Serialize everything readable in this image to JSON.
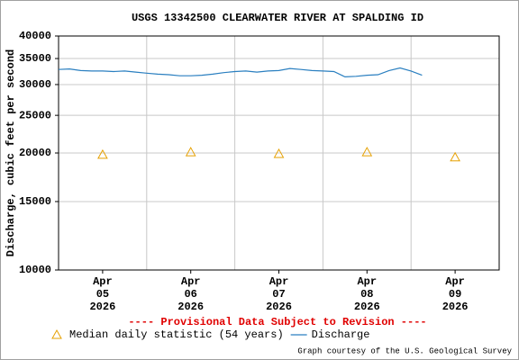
{
  "chart_data": {
    "type": "line",
    "title": "USGS 13342500 CLEARWATER RIVER AT SPALDING ID",
    "ylabel": "Discharge, cubic feet per second",
    "log_y": true,
    "grid": true,
    "ylim": [
      10000,
      40000
    ],
    "yticks": [
      10000,
      15000,
      20000,
      25000,
      30000,
      35000,
      40000
    ],
    "xlim": [
      "2026-04-05T00:00",
      "2026-04-10T00:00"
    ],
    "xticks": [
      "2026-04-06T00:00",
      "2026-04-07T00:00",
      "2026-04-08T00:00",
      "2026-04-09T00:00"
    ],
    "xtick_labels": [
      {
        "value": "2026-04-05T12:00",
        "label": [
          "Apr",
          "05",
          "2026"
        ]
      },
      {
        "value": "2026-04-06T12:00",
        "label": [
          "Apr",
          "06",
          "2026"
        ]
      },
      {
        "value": "2026-04-07T12:00",
        "label": [
          "Apr",
          "07",
          "2026"
        ]
      },
      {
        "value": "2026-04-08T12:00",
        "label": [
          "Apr",
          "08",
          "2026"
        ]
      },
      {
        "value": "2026-04-09T12:00",
        "label": [
          "Apr",
          "09",
          "2026"
        ]
      }
    ],
    "annotation": "---- Provisional Data Subject to Revision ----",
    "annotation_color": "#e00000",
    "credit": "Graph courtesy of the U.S. Geological Survey",
    "series": [
      {
        "name": "Median daily statistic (54 years)",
        "type": "scatter",
        "marker": "triangle",
        "color": "#e6a000",
        "x": [
          "2026-04-05T12:00",
          "2026-04-06T12:00",
          "2026-04-07T12:00",
          "2026-04-08T12:00",
          "2026-04-09T12:00"
        ],
        "values": [
          19800,
          20100,
          19900,
          20100,
          19500
        ]
      },
      {
        "name": "Discharge",
        "type": "line",
        "color": "#2a7fc0",
        "x": [
          "2026-04-05T00:00",
          "2026-04-05T03:00",
          "2026-04-05T06:00",
          "2026-04-05T09:00",
          "2026-04-05T12:00",
          "2026-04-05T15:00",
          "2026-04-05T18:00",
          "2026-04-05T21:00",
          "2026-04-06T00:00",
          "2026-04-06T03:00",
          "2026-04-06T06:00",
          "2026-04-06T09:00",
          "2026-04-06T12:00",
          "2026-04-06T15:00",
          "2026-04-06T18:00",
          "2026-04-06T21:00",
          "2026-04-07T00:00",
          "2026-04-07T03:00",
          "2026-04-07T06:00",
          "2026-04-07T09:00",
          "2026-04-07T12:00",
          "2026-04-07T15:00",
          "2026-04-07T18:00",
          "2026-04-07T21:00",
          "2026-04-08T00:00",
          "2026-04-08T03:00",
          "2026-04-08T06:00",
          "2026-04-08T09:00",
          "2026-04-08T12:00",
          "2026-04-08T15:00",
          "2026-04-08T18:00",
          "2026-04-08T21:00",
          "2026-04-09T00:00",
          "2026-04-09T03:00"
        ],
        "values": [
          32800,
          32900,
          32600,
          32500,
          32500,
          32400,
          32500,
          32300,
          32100,
          31900,
          31800,
          31600,
          31600,
          31700,
          31900,
          32200,
          32400,
          32500,
          32300,
          32500,
          32600,
          33000,
          32800,
          32600,
          32500,
          32400,
          31400,
          31500,
          31700,
          31800,
          32600,
          33100,
          32500,
          31700
        ]
      }
    ]
  }
}
